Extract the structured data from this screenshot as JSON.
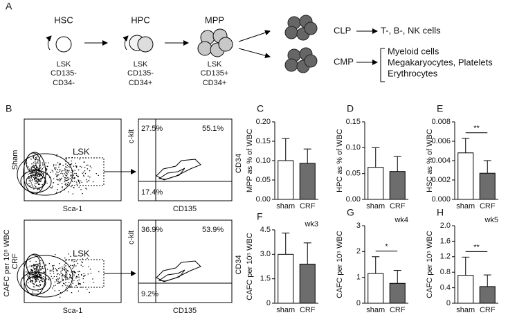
{
  "diagram": {
    "label": "A",
    "stages": [
      {
        "name": "HSC",
        "markers": [
          "LSK",
          "CD135-",
          "CD34-"
        ]
      },
      {
        "name": "HPC",
        "markers": [
          "LSK",
          "CD135-",
          "CD34+"
        ]
      },
      {
        "name": "MPP",
        "markers": [
          "LSK",
          "CD135+",
          "CD34+"
        ]
      }
    ],
    "branches": [
      {
        "name": "CLP",
        "outputs": [
          "T-, B-, NK cells"
        ]
      },
      {
        "name": "CMP",
        "outputs": [
          "Myeloid cells",
          "Megakaryocytes, Platelets",
          "Erythrocytes"
        ]
      }
    ]
  },
  "flow": {
    "label": "B",
    "side_label": "CAFC per 10⁵ WBC",
    "rows": [
      {
        "group": "Sham",
        "gate": "LSK",
        "x_axis": "Sca-1",
        "y_axis": "c-kit",
        "right_x": "CD135",
        "right_y": "CD34",
        "quadrants": [
          "27.5%",
          "55.1%",
          "17.4%"
        ]
      },
      {
        "group": "CRF",
        "gate": "LSK",
        "x_axis": "Sca-1",
        "y_axis": "c-kit",
        "right_x": "CD135",
        "right_y": "CD34",
        "quadrants": [
          "36.9%",
          "53.9%",
          "9.2%"
        ]
      }
    ]
  },
  "chart_data": [
    {
      "type": "bar",
      "label": "C",
      "ylabel": "MPP as % of WBC",
      "categories": [
        "sham",
        "CRF"
      ],
      "values": [
        0.1,
        0.093
      ],
      "errors": [
        0.057,
        0.037
      ],
      "colors": [
        "#ffffff",
        "#6d6d6d"
      ],
      "ylim": [
        0,
        0.2
      ],
      "yticks": [
        {
          "value": 0,
          "label": "0.00"
        },
        0.05,
        {
          "value": 0.1,
          "label": "0.10"
        },
        0.15,
        {
          "value": 0.2,
          "label": "0.20"
        }
      ]
    },
    {
      "type": "bar",
      "label": "D",
      "ylabel": "HPC as % of WBC",
      "categories": [
        "sham",
        "CRF"
      ],
      "values": [
        0.062,
        0.054
      ],
      "errors": [
        0.038,
        0.029
      ],
      "colors": [
        "#ffffff",
        "#6d6d6d"
      ],
      "ylim": [
        0,
        0.15
      ],
      "yticks": [
        {
          "value": 0,
          "label": "0.00"
        },
        0.05,
        {
          "value": 0.1,
          "label": "0.10"
        },
        0.15
      ]
    },
    {
      "type": "bar",
      "label": "E",
      "ylabel": "HSC as % of WBC",
      "annotation": "**",
      "categories": [
        "sham",
        "CRF"
      ],
      "values": [
        0.0048,
        0.0027
      ],
      "errors": [
        0.0015,
        0.0013
      ],
      "colors": [
        "#ffffff",
        "#6d6d6d"
      ],
      "ylim": [
        0,
        0.008
      ],
      "yticks": [
        {
          "value": 0,
          "label": "0.000"
        },
        0.002,
        0.004,
        0.006,
        0.008
      ]
    },
    {
      "type": "bar",
      "label": "F",
      "title": "wk3",
      "ylabel": "CAFC  per 10⁵ WBC",
      "categories": [
        "sham",
        "CRF"
      ],
      "values": [
        3.0,
        2.4
      ],
      "errors": [
        1.3,
        1.3
      ],
      "colors": [
        "#ffffff",
        "#6d6d6d"
      ],
      "ylim": [
        0,
        4.5
      ],
      "yticks": [
        0,
        1.5,
        {
          "value": 3,
          "label": "3.0"
        },
        4.5
      ]
    },
    {
      "type": "bar",
      "label": "G",
      "title": "wk4",
      "ylabel": "CAFC  per 10⁵ WBC",
      "annotation": "*",
      "categories": [
        "sham",
        "CRF"
      ],
      "values": [
        1.15,
        0.77
      ],
      "errors": [
        0.65,
        0.5
      ],
      "colors": [
        "#ffffff",
        "#6d6d6d"
      ],
      "ylim": [
        0,
        3
      ],
      "yticks": [
        0,
        1,
        2,
        3
      ]
    },
    {
      "type": "bar",
      "label": "H",
      "title": "wk5",
      "ylabel": "CAFC  per 10⁵ WBC",
      "annotation": "**",
      "categories": [
        "sham",
        "CRF"
      ],
      "values": [
        0.72,
        0.43
      ],
      "errors": [
        0.47,
        0.3
      ],
      "colors": [
        "#ffffff",
        "#6d6d6d"
      ],
      "ylim": [
        0,
        2
      ],
      "yticks": [
        0,
        0.4,
        0.8,
        1.2,
        1.6,
        {
          "value": 2,
          "label": "2.0"
        }
      ]
    }
  ]
}
